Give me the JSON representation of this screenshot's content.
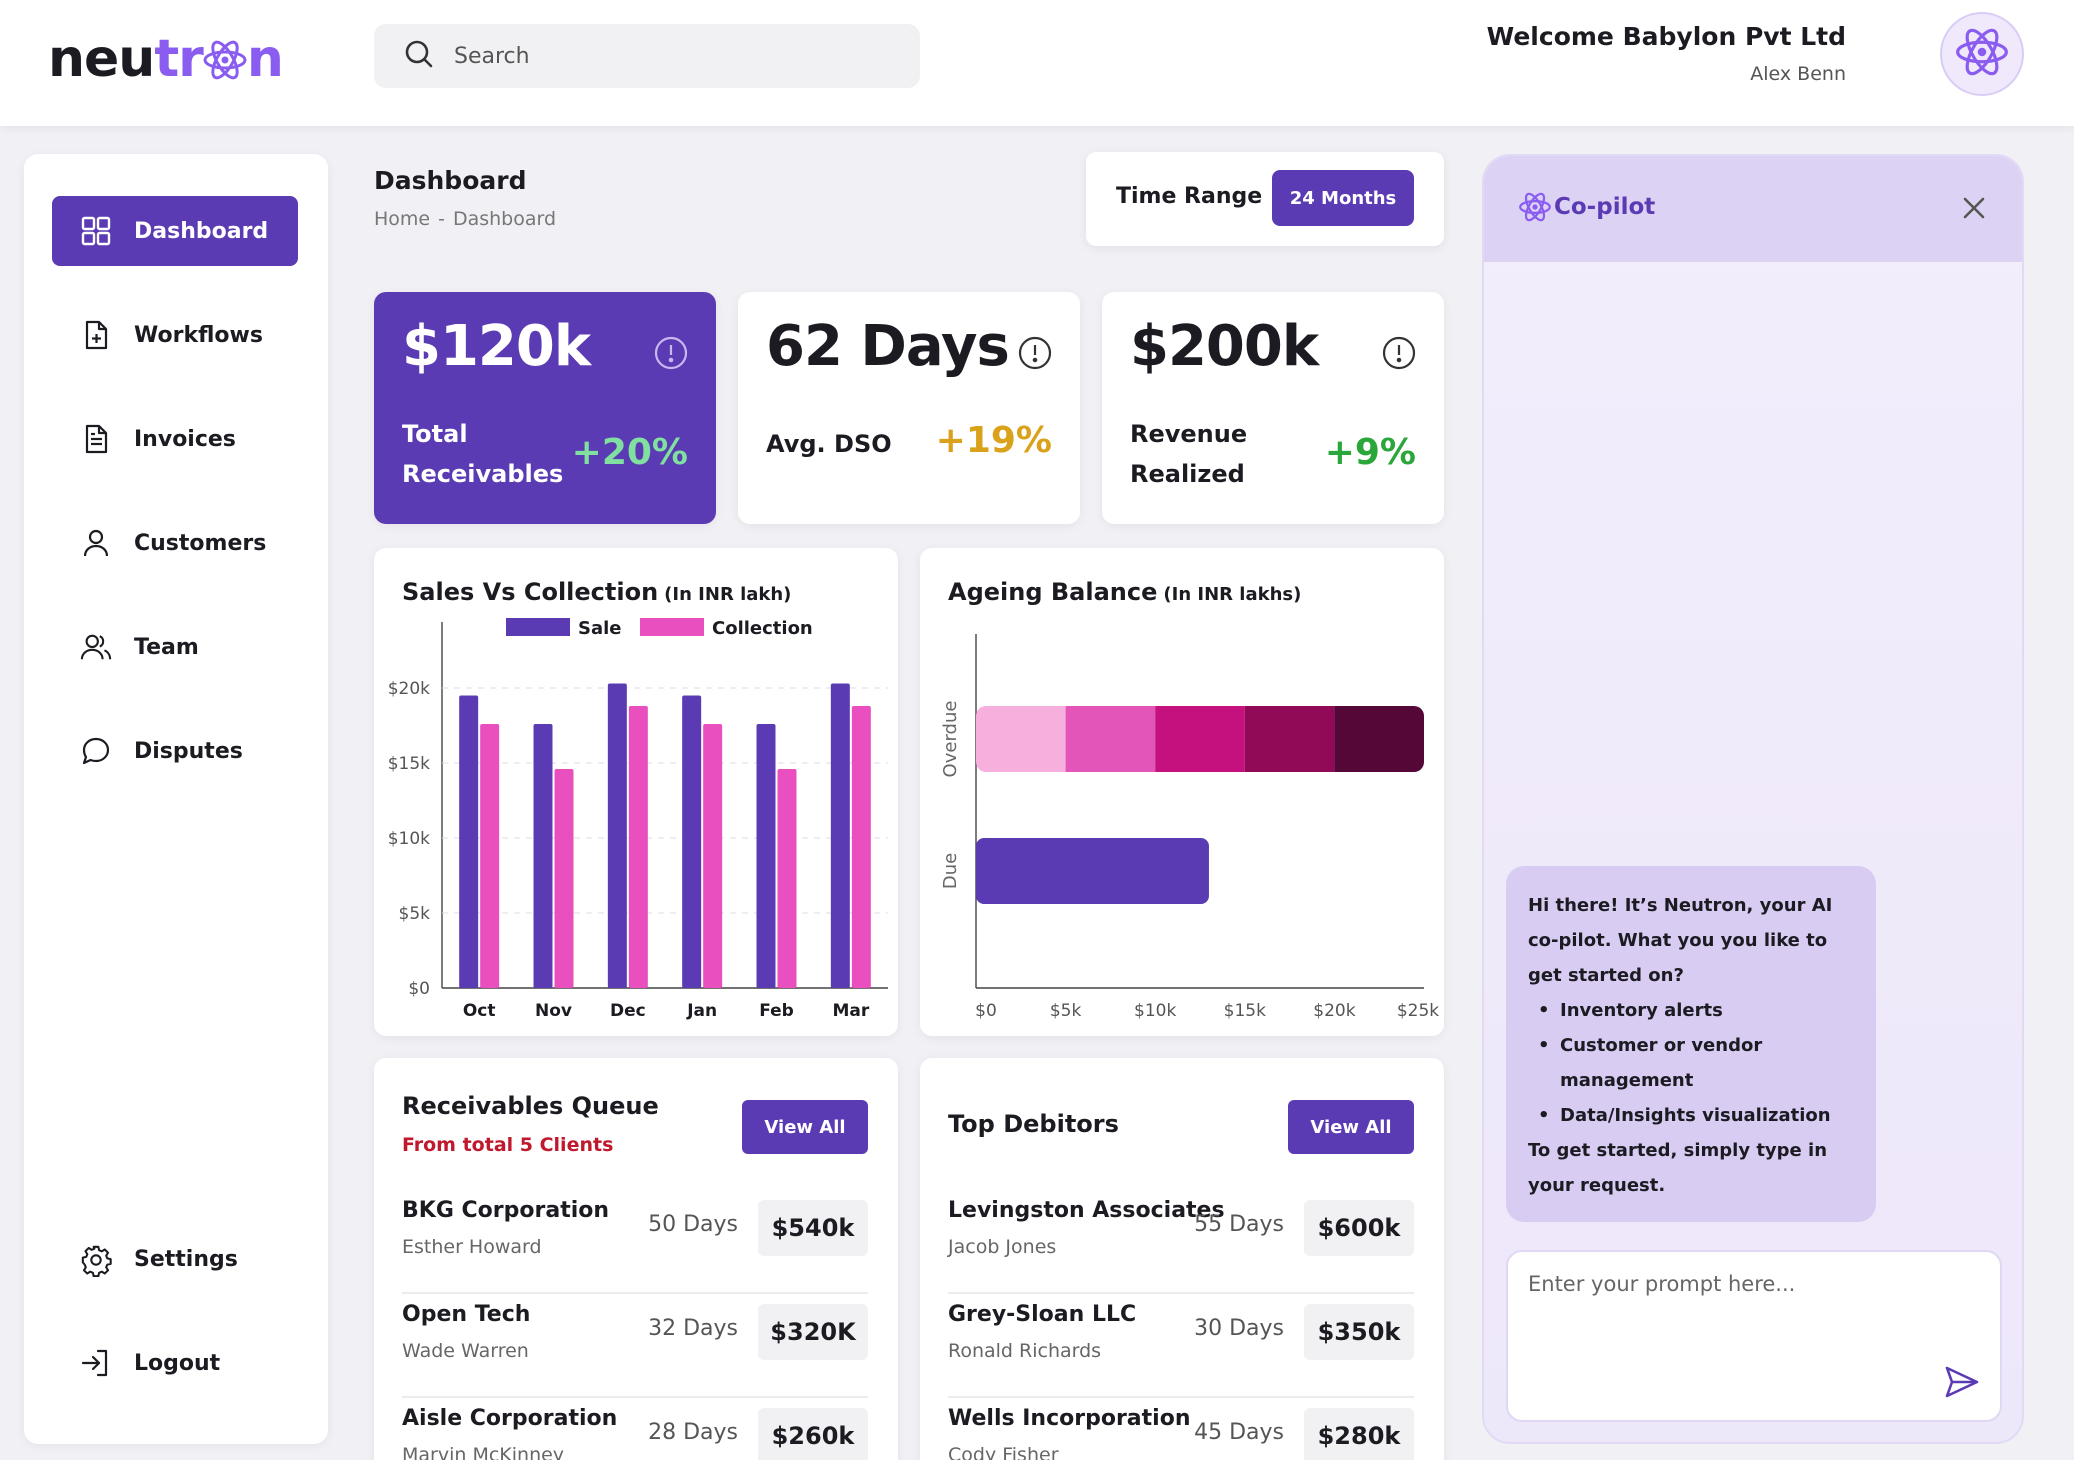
{
  "brand": {
    "logo_a": "neu",
    "logo_b": "tr",
    "logo_c": "n"
  },
  "search": {
    "placeholder": "Search"
  },
  "user": {
    "welcome": "Welcome Babylon Pvt Ltd",
    "name": "Alex Benn"
  },
  "sidebar": {
    "items": [
      {
        "label": "Dashboard",
        "icon": "grid-icon"
      },
      {
        "label": "Workflows",
        "icon": "file-plus-icon"
      },
      {
        "label": "Invoices",
        "icon": "document-icon"
      },
      {
        "label": "Customers",
        "icon": "user-icon"
      },
      {
        "label": "Team",
        "icon": "users-icon"
      },
      {
        "label": "Disputes",
        "icon": "chat-bubble-icon"
      }
    ],
    "bottom": [
      {
        "label": "Settings",
        "icon": "gear-icon"
      },
      {
        "label": "Logout",
        "icon": "logout-icon"
      }
    ]
  },
  "header": {
    "title": "Dashboard",
    "breadcrumb": [
      "Home",
      "-",
      "Dashboard"
    ],
    "time_range_label": "Time Range",
    "time_range_value": "24 Months"
  },
  "kpis": [
    {
      "value": "$120k",
      "label_1": "Total",
      "label_2": "Receivables",
      "change": "+20%",
      "change_color": "#7fe0a0"
    },
    {
      "value": "62 Days",
      "label_1": "Avg. DSO",
      "label_2": "",
      "change": "+19%",
      "change_color": "#d9a21a"
    },
    {
      "value": "$200k",
      "label_1": "Revenue",
      "label_2": "Realized",
      "change": "+9%",
      "change_color": "#2aa63a"
    }
  ],
  "chart_data": [
    {
      "type": "bar",
      "title": "Sales Vs Collection",
      "subtitle": "(In INR lakh)",
      "categories": [
        "Oct",
        "Nov",
        "Dec",
        "Jan",
        "Feb",
        "Mar"
      ],
      "series": [
        {
          "name": "Sale",
          "color": "#5b3bb3",
          "values": [
            19500,
            17600,
            20300,
            19500,
            17600,
            20300
          ]
        },
        {
          "name": "Collection",
          "color": "#e94fbe",
          "values": [
            17600,
            14600,
            18800,
            17600,
            14600,
            18800
          ]
        }
      ],
      "y_ticks": [
        "$0",
        "$5k",
        "$10k",
        "$15k",
        "$20k"
      ],
      "ylim": [
        0,
        24000
      ],
      "legend": "top",
      "grid": true
    },
    {
      "type": "bar",
      "orientation": "horizontal",
      "stacked": true,
      "title": "Ageing Balance",
      "subtitle": "(In INR lakhs)",
      "categories": [
        "Overdue",
        "Due"
      ],
      "segment_colors": [
        "#f7b0de",
        "#e455b9",
        "#c4117d",
        "#900a58",
        "#550838"
      ],
      "overdue_segments": [
        5000,
        5000,
        5000,
        5000,
        5000
      ],
      "due_value": 13000,
      "due_color": "#5b3bb3",
      "x_ticks": [
        "$0",
        "$5k",
        "$10k",
        "$15k",
        "$20k",
        "$25k"
      ],
      "xlim": [
        0,
        25000
      ]
    }
  ],
  "receivables": {
    "title": "Receivables Queue",
    "subtitle": "From total 5 Clients",
    "view_all": "View All",
    "rows": [
      {
        "name": "BKG Corporation",
        "person": "Esther Howard",
        "days": "50 Days",
        "amount": "$540k"
      },
      {
        "name": "Open Tech",
        "person": "Wade Warren",
        "days": "32 Days",
        "amount": "$320K"
      },
      {
        "name": "Aisle Corporation",
        "person": "Marvin McKinney",
        "days": "28 Days",
        "amount": "$260k"
      }
    ]
  },
  "debitors": {
    "title": "Top Debitors",
    "view_all": "View All",
    "rows": [
      {
        "name": "Levingston Associates",
        "person": "Jacob Jones",
        "days": "55 Days",
        "amount": "$600k"
      },
      {
        "name": "Grey-Sloan LLC",
        "person": "Ronald Richards",
        "days": "30 Days",
        "amount": "$350k"
      },
      {
        "name": "Wells Incorporation",
        "person": "Cody Fisher",
        "days": "45 Days",
        "amount": "$280k"
      }
    ]
  },
  "copilot": {
    "title": "Co-pilot",
    "message_intro": "Hi there! It’s Neutron, your AI co-pilot. What you you like to get started on?",
    "message_items": [
      "Inventory alerts",
      "Customer or vendor management",
      "Data/Insights visualization"
    ],
    "message_outro": "To get started, simply type in your request.",
    "prompt_placeholder": "Enter your prompt here..."
  }
}
